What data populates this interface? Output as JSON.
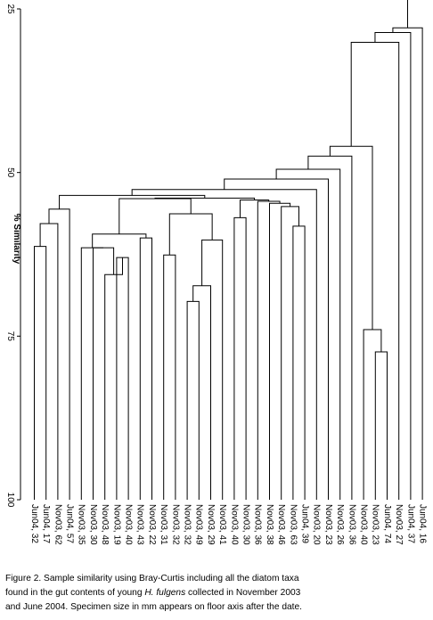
{
  "chart_data": {
    "type": "dendrogram",
    "ylabel": "% Similarity",
    "yticks": [
      25,
      50,
      75,
      100
    ],
    "ylim": [
      25,
      100
    ],
    "leaves": [
      "Jun04, 32",
      "Jun04, 17",
      "Nov03, 62",
      "Jun04, 57",
      "Nov03, 35",
      "Nov03, 30",
      "Nov03, 48",
      "Nov03, 19",
      "Nov03, 40",
      "Nov03, 43",
      "Nov03, 22",
      "Nov03, 31",
      "Nov03, 32",
      "Nov03, 32",
      "Nov03, 49",
      "Nov03, 29",
      "Nov03, 41",
      "Nov03, 40",
      "Nov03, 30",
      "Nov03, 36",
      "Nov03, 38",
      "Nov03, 46",
      "Nov03, 63",
      "Jun04, 39",
      "Nov03, 20",
      "Nov03, 23",
      "Nov03, 26",
      "Nov03, 36",
      "Nov03, 40",
      "Nov03, 23",
      "Jun04, 74",
      "Nov03, 27",
      "Jun04, 37",
      "Jun04, 16"
    ],
    "merges": [
      {
        "a": 0,
        "b": 1,
        "h": 61.3
      },
      {
        "a": 7,
        "b": 8,
        "h": 63.0
      },
      {
        "a": 6,
        "b": -2,
        "h": 65.6
      },
      {
        "a": 5,
        "b": -3,
        "h": 61.5
      },
      {
        "a": 4,
        "b": -4,
        "h": 61.5
      },
      {
        "a": 11,
        "b": 12,
        "h": 62.6
      },
      {
        "a": 13,
        "b": 14,
        "h": 69.7
      },
      {
        "a": 15,
        "b": -7,
        "h": 67.3
      },
      {
        "a": 16,
        "b": -8,
        "h": 60.3
      },
      {
        "a": 29,
        "b": 30,
        "h": 77.4
      },
      {
        "a": 28,
        "b": -10,
        "h": 74.0
      },
      {
        "a": 9,
        "b": 10,
        "h": 60.0
      },
      {
        "a": -5,
        "b": -12,
        "h": 59.4
      },
      {
        "a": 2,
        "b": -1,
        "h": 57.8
      },
      {
        "a": 3,
        "b": -14,
        "h": 55.6
      },
      {
        "a": -6,
        "b": -9,
        "h": 56.3
      },
      {
        "a": 17,
        "b": 18,
        "h": 56.9
      },
      {
        "a": 22,
        "b": 23,
        "h": 58.2
      },
      {
        "a": 21,
        "b": -18,
        "h": 55.2
      },
      {
        "a": 20,
        "b": -19,
        "h": 54.7
      },
      {
        "a": 19,
        "b": -20,
        "h": 54.4
      },
      {
        "a": -17,
        "b": -21,
        "h": 54.2
      },
      {
        "a": -13,
        "b": -16,
        "h": 54.0
      },
      {
        "a": -22,
        "b": -23,
        "h": 53.9
      },
      {
        "a": -15,
        "b": -24,
        "h": 53.5
      },
      {
        "a": 24,
        "b": -25,
        "h": 52.6
      },
      {
        "a": 25,
        "b": -26,
        "h": 51.0
      },
      {
        "a": 26,
        "b": -27,
        "h": 49.5
      },
      {
        "a": 27,
        "b": -28,
        "h": 47.5
      },
      {
        "a": -29,
        "b": -11,
        "h": 46.0
      },
      {
        "a": 31,
        "b": -30,
        "h": 30.1
      },
      {
        "a": 32,
        "b": -31,
        "h": 28.6
      },
      {
        "a": 33,
        "b": -32,
        "h": 27.9
      }
    ]
  },
  "caption": {
    "line1": "Figure 2. Sample similarity using Bray-Curtis including all the diatom taxa",
    "line2_pre": "found in the gut contents of young ",
    "line2_italic": "H. fulgens",
    "line2_post": " collected in November 2003",
    "line3": "and June 2004. Specimen size in mm appears on floor axis after the date."
  }
}
